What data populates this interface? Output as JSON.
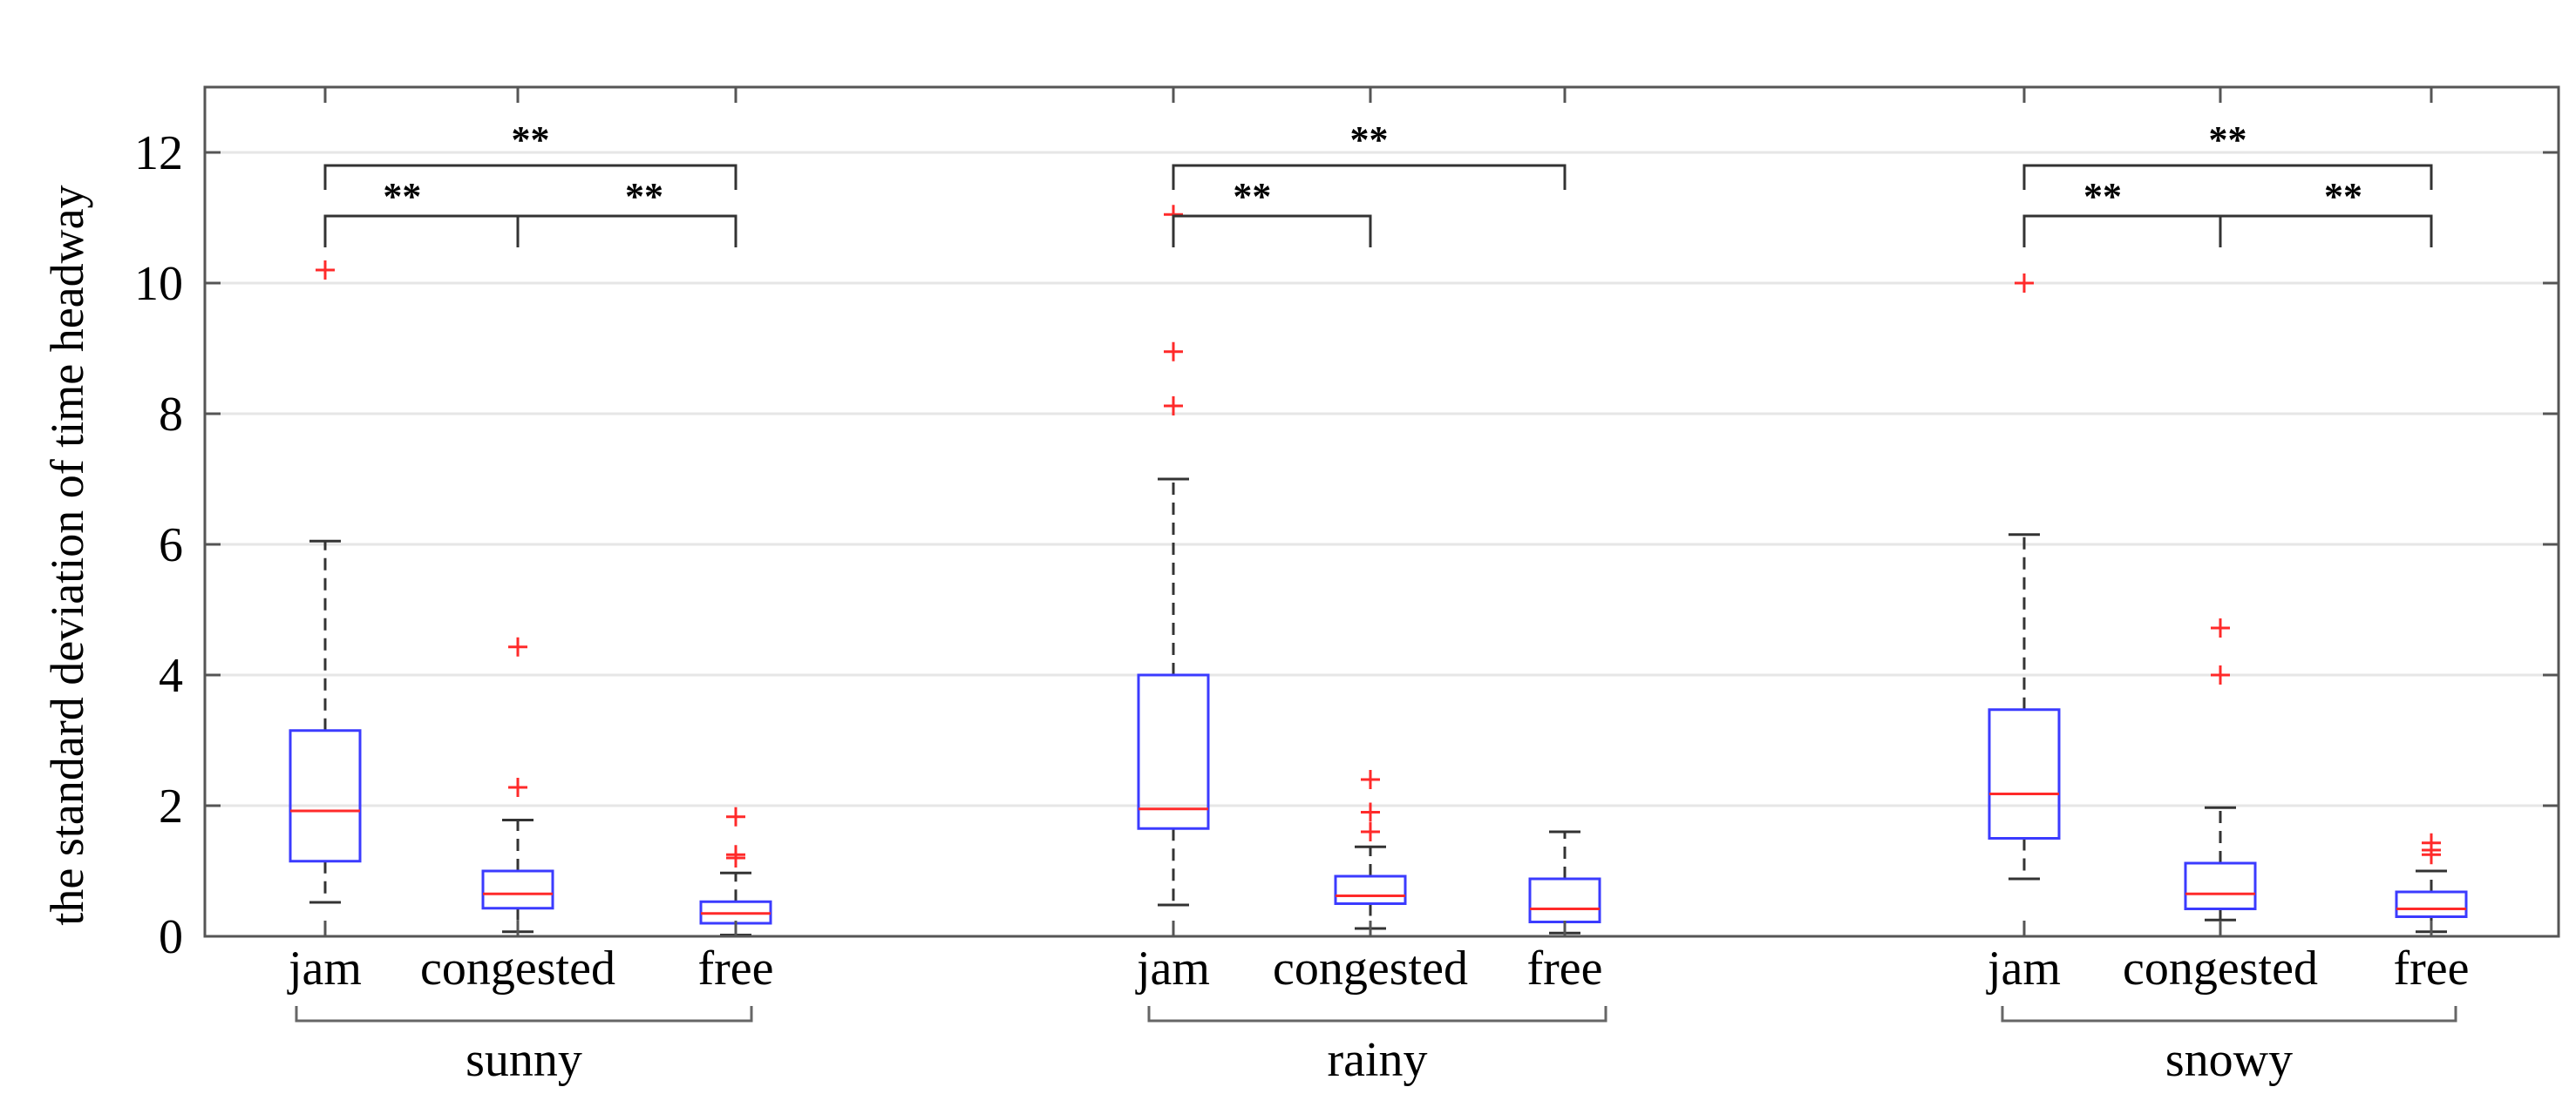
{
  "chart_data": {
    "type": "boxplot",
    "title": "",
    "xlabel": "",
    "ylabel": "the standard deviation of time headway",
    "ylim": [
      0,
      13
    ],
    "yticks": [
      0,
      2,
      4,
      6,
      8,
      10,
      12
    ],
    "grid": "horizontal",
    "colors": {
      "box": "#3b3bff",
      "median": "#ff2a2a",
      "outlier": "#ff2a2a",
      "whisker": "#333333",
      "frame": "#555555",
      "grid": "#e6e6e6"
    },
    "groups": [
      {
        "name": "sunny",
        "boxes": [
          {
            "category": "jam",
            "whisker_low": 0.52,
            "q1": 1.15,
            "median": 1.92,
            "q3": 3.15,
            "whisker_high": 6.05,
            "outliers": [
              10.2
            ]
          },
          {
            "category": "congested",
            "whisker_low": 0.07,
            "q1": 0.43,
            "median": 0.65,
            "q3": 1.0,
            "whisker_high": 1.78,
            "outliers": [
              2.28,
              4.43
            ]
          },
          {
            "category": "free",
            "whisker_low": 0.02,
            "q1": 0.2,
            "median": 0.35,
            "q3": 0.53,
            "whisker_high": 0.97,
            "outliers": [
              1.2,
              1.25,
              1.83
            ]
          }
        ],
        "significance": [
          {
            "from": "jam",
            "to": "free",
            "label": "**"
          },
          {
            "from": "jam",
            "to": "congested",
            "label": "**"
          },
          {
            "from": "congested",
            "to": "free",
            "label": "**"
          }
        ]
      },
      {
        "name": "rainy",
        "boxes": [
          {
            "category": "jam",
            "whisker_low": 0.48,
            "q1": 1.65,
            "median": 1.95,
            "q3": 4.0,
            "whisker_high": 7.0,
            "outliers": [
              8.12,
              8.95,
              11.05
            ]
          },
          {
            "category": "congested",
            "whisker_low": 0.12,
            "q1": 0.5,
            "median": 0.62,
            "q3": 0.92,
            "whisker_high": 1.37,
            "outliers": [
              1.6,
              1.9,
              2.4
            ]
          },
          {
            "category": "free",
            "whisker_low": 0.05,
            "q1": 0.22,
            "median": 0.42,
            "q3": 0.88,
            "whisker_high": 1.6,
            "outliers": []
          }
        ],
        "significance": [
          {
            "from": "jam",
            "to": "free",
            "label": "**"
          },
          {
            "from": "jam",
            "to": "congested",
            "label": "**"
          }
        ]
      },
      {
        "name": "snowy",
        "boxes": [
          {
            "category": "jam",
            "whisker_low": 0.88,
            "q1": 1.5,
            "median": 2.18,
            "q3": 3.47,
            "whisker_high": 6.15,
            "outliers": [
              10.0
            ]
          },
          {
            "category": "congested",
            "whisker_low": 0.25,
            "q1": 0.42,
            "median": 0.65,
            "q3": 1.12,
            "whisker_high": 1.97,
            "outliers": [
              4.0,
              4.72
            ]
          },
          {
            "category": "free",
            "whisker_low": 0.07,
            "q1": 0.3,
            "median": 0.42,
            "q3": 0.68,
            "whisker_high": 1.0,
            "outliers": [
              1.25,
              1.32,
              1.43
            ]
          }
        ],
        "significance": [
          {
            "from": "jam",
            "to": "free",
            "label": "**"
          },
          {
            "from": "jam",
            "to": "congested",
            "label": "**"
          },
          {
            "from": "congested",
            "to": "free",
            "label": "**"
          }
        ]
      }
    ]
  }
}
